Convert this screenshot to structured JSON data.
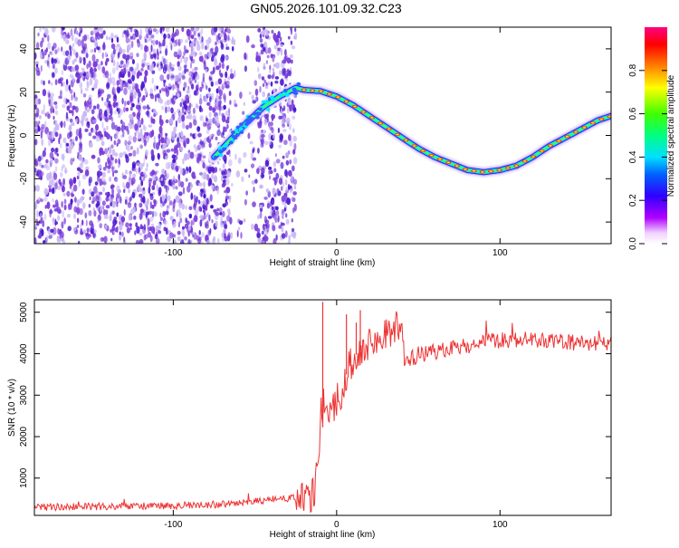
{
  "title": "GN05.2026.101.09.32.C23",
  "colors": {
    "frame": "#000000",
    "snr_line": "#ee3333",
    "low_density": "#c9b7f4",
    "mid_density": "#7a3ad8",
    "high_density": "#4a18d0"
  },
  "chart_data": [
    {
      "type": "heatmap",
      "title": "",
      "xlabel": "Height of straight line (km)",
      "ylabel": "Frequency (Hz)",
      "xlim": [
        -185,
        168
      ],
      "ylim": [
        -50,
        50
      ],
      "xticks": [
        -100,
        0,
        100
      ],
      "yticks": [
        -40,
        -20,
        0,
        20,
        40
      ],
      "tick_labels_x": [
        "-100",
        "0",
        "100"
      ],
      "tick_labels_y": [
        "-40",
        "-20",
        "0",
        "20",
        "40"
      ],
      "colorbar": {
        "label": "Normalized spectral amplitude",
        "range": [
          0,
          1
        ],
        "ticks": [
          0.0,
          0.2,
          0.4,
          0.6,
          0.8
        ],
        "tick_labels": [
          "0.0",
          "0.2",
          "0.4",
          "0.6",
          "0.8"
        ]
      },
      "signal_track": {
        "x": [
          -75,
          -65,
          -55,
          -45,
          -35,
          -25,
          -20,
          -10,
          0,
          10,
          20,
          30,
          40,
          50,
          60,
          70,
          80,
          90,
          100,
          110,
          120,
          130,
          140,
          150,
          160,
          168
        ],
        "y": [
          -10,
          -2,
          6,
          13,
          18,
          22,
          21,
          20.5,
          18,
          14,
          9,
          4,
          -1,
          -6,
          -10,
          -13,
          -16,
          -17,
          -16,
          -14,
          -10,
          -5,
          -1,
          3,
          7,
          9
        ]
      },
      "noise_region_x": [
        -185,
        -25
      ]
    },
    {
      "type": "line",
      "title": "",
      "xlabel": "Height of straight line (km)",
      "ylabel": "SNR (10 * v/v)",
      "xlim": [
        -185,
        168
      ],
      "ylim": [
        100,
        5300
      ],
      "xticks": [
        -100,
        0,
        100
      ],
      "yticks": [
        1000,
        2000,
        3000,
        4000,
        5000
      ],
      "tick_labels_x": [
        "-100",
        "0",
        "100"
      ],
      "tick_labels_y": [
        "1000",
        "2000",
        "3000",
        "4000",
        "5000"
      ],
      "series": [
        {
          "name": "SNR",
          "x": [
            -185,
            -150,
            -120,
            -100,
            -80,
            -60,
            -45,
            -35,
            -25,
            -18,
            -14,
            -12,
            -10,
            -8,
            -5,
            -3,
            0,
            3,
            6,
            10,
            15,
            20,
            25,
            30,
            35,
            40,
            41,
            45,
            55,
            70,
            90,
            110,
            130,
            150,
            168
          ],
          "y": [
            300,
            310,
            320,
            330,
            350,
            380,
            460,
            500,
            520,
            480,
            600,
            1200,
            2000,
            2300,
            2700,
            2500,
            2900,
            3000,
            3500,
            3900,
            4100,
            4200,
            4350,
            4500,
            4600,
            4700,
            3850,
            3900,
            4000,
            4100,
            4300,
            4350,
            4300,
            4250,
            4250
          ],
          "spikes": [
            {
              "x": -8.5,
              "y": 5250
            },
            {
              "x": 6,
              "y": 4950
            },
            {
              "x": 12,
              "y": 4750
            },
            {
              "x": 14.5,
              "y": 5050
            }
          ]
        }
      ]
    }
  ]
}
